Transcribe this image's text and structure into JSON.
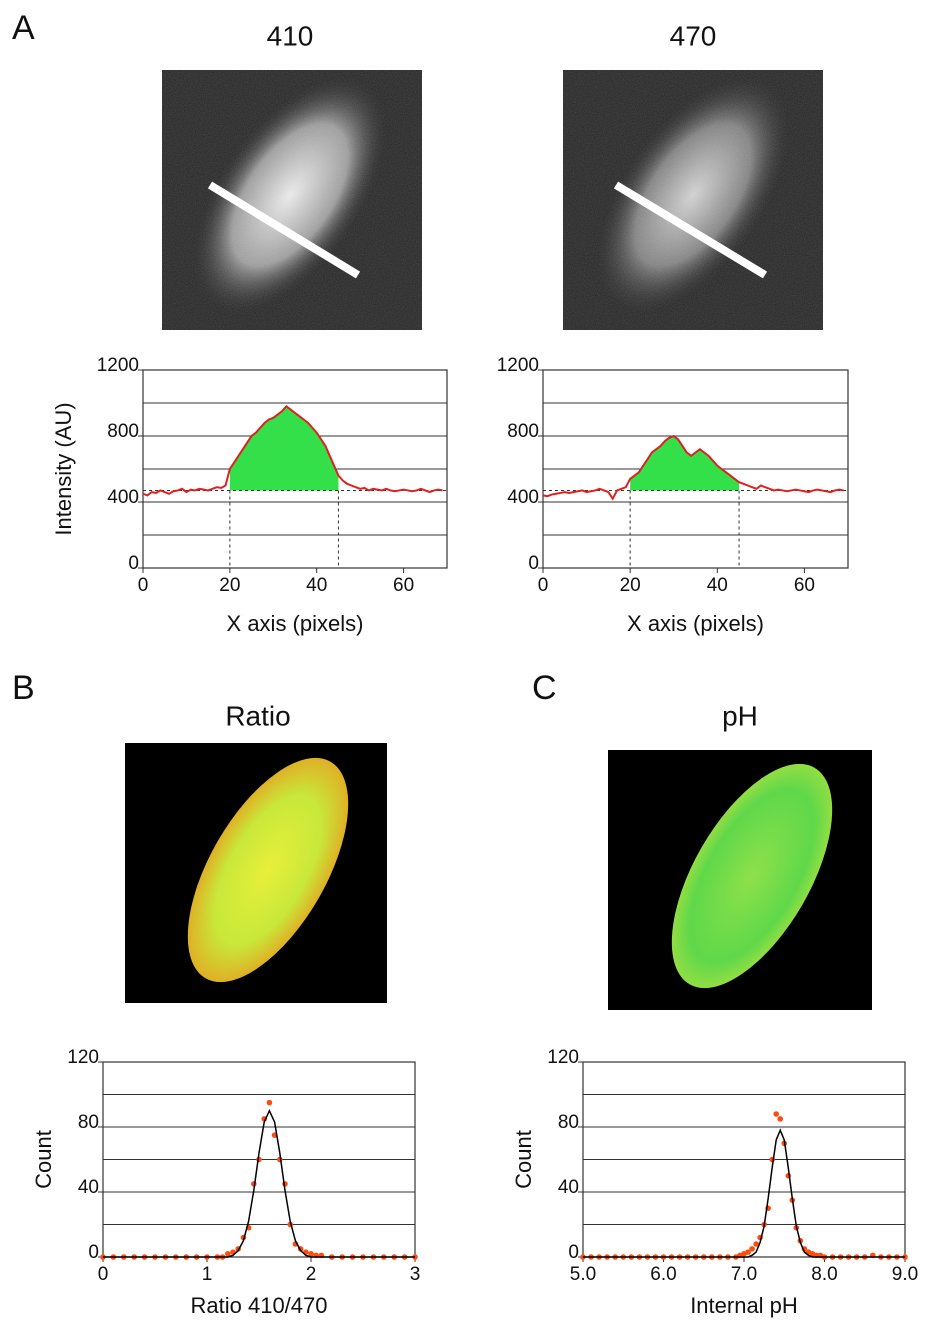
{
  "panel_labels": [
    "A",
    "B",
    "C"
  ],
  "image_titles": [
    "410",
    "470",
    "Ratio",
    "pH"
  ],
  "chart_data": [
    {
      "type": "line",
      "xlabel": "X axis (pixels)",
      "ylabel": "Intensity (AU)",
      "xlim": [
        0,
        70
      ],
      "ylim": [
        0,
        1200
      ],
      "xticks": [
        0,
        20,
        40,
        60
      ],
      "yticks": [
        0,
        400,
        800,
        1200
      ],
      "ygrid": [
        200,
        400,
        600,
        800,
        1000
      ],
      "shade_range": [
        20,
        45
      ],
      "baseline": 470,
      "shade_color": "#33e04a",
      "x": [
        0,
        1,
        2,
        3,
        4,
        5,
        6,
        7,
        8,
        9,
        10,
        11,
        12,
        13,
        14,
        15,
        16,
        17,
        18,
        19,
        20,
        21,
        22,
        23,
        24,
        25,
        26,
        27,
        28,
        29,
        30,
        31,
        32,
        33,
        34,
        35,
        36,
        37,
        38,
        39,
        40,
        41,
        42,
        43,
        44,
        45,
        46,
        47,
        48,
        49,
        50,
        51,
        52,
        53,
        54,
        55,
        56,
        57,
        58,
        59,
        60,
        61,
        62,
        63,
        64,
        65,
        66,
        67,
        68,
        69
      ],
      "series": [
        {
          "color": "#e02020",
          "values": [
            450,
            440,
            460,
            455,
            470,
            460,
            450,
            465,
            470,
            480,
            460,
            475,
            470,
            480,
            475,
            470,
            480,
            490,
            485,
            500,
            600,
            640,
            680,
            720,
            760,
            800,
            820,
            850,
            880,
            900,
            910,
            930,
            950,
            980,
            960,
            940,
            920,
            900,
            880,
            850,
            820,
            780,
            740,
            680,
            620,
            560,
            530,
            510,
            500,
            490,
            480,
            485,
            470,
            480,
            475,
            470,
            480,
            470,
            465,
            470,
            475,
            470,
            465,
            470,
            480,
            470,
            460,
            470,
            475,
            470
          ]
        }
      ]
    },
    {
      "type": "line",
      "xlabel": "X axis (pixels)",
      "xlim": [
        0,
        70
      ],
      "ylim": [
        0,
        1200
      ],
      "xticks": [
        0,
        20,
        40,
        60
      ],
      "yticks": [
        0,
        400,
        800,
        1200
      ],
      "ygrid": [
        200,
        400,
        600,
        800,
        1000
      ],
      "shade_range": [
        20,
        45
      ],
      "baseline": 470,
      "shade_color": "#33e04a",
      "x": [
        0,
        1,
        2,
        3,
        4,
        5,
        6,
        7,
        8,
        9,
        10,
        11,
        12,
        13,
        14,
        15,
        16,
        17,
        18,
        19,
        20,
        21,
        22,
        23,
        24,
        25,
        26,
        27,
        28,
        29,
        30,
        31,
        32,
        33,
        34,
        35,
        36,
        37,
        38,
        39,
        40,
        41,
        42,
        43,
        44,
        45,
        46,
        47,
        48,
        49,
        50,
        51,
        52,
        53,
        54,
        55,
        56,
        57,
        58,
        59,
        60,
        61,
        62,
        63,
        64,
        65,
        66,
        67,
        68,
        69
      ],
      "series": [
        {
          "color": "#e02020",
          "values": [
            440,
            435,
            445,
            450,
            455,
            460,
            455,
            460,
            465,
            470,
            460,
            465,
            470,
            480,
            470,
            460,
            420,
            470,
            480,
            490,
            540,
            560,
            580,
            620,
            660,
            700,
            720,
            740,
            770,
            790,
            800,
            780,
            740,
            700,
            680,
            700,
            720,
            700,
            680,
            650,
            620,
            600,
            580,
            560,
            540,
            520,
            510,
            500,
            490,
            480,
            500,
            490,
            480,
            470,
            475,
            470,
            465,
            470,
            475,
            470,
            465,
            460,
            470,
            475,
            470,
            465,
            460,
            470,
            475,
            470
          ]
        }
      ]
    },
    {
      "type": "scatter",
      "xlabel": "Ratio 410/470",
      "ylabel": "Count",
      "xlim": [
        0,
        3
      ],
      "ylim": [
        0,
        120
      ],
      "xticks": [
        0,
        1,
        2,
        3
      ],
      "yticks": [
        0,
        40,
        80,
        120
      ],
      "ygrid": [
        20,
        40,
        60,
        80,
        100
      ],
      "x": [
        0,
        0.1,
        0.2,
        0.3,
        0.4,
        0.5,
        0.6,
        0.7,
        0.8,
        0.9,
        1.0,
        1.1,
        1.15,
        1.2,
        1.25,
        1.3,
        1.35,
        1.4,
        1.45,
        1.5,
        1.55,
        1.6,
        1.65,
        1.7,
        1.75,
        1.8,
        1.85,
        1.9,
        1.95,
        2.0,
        2.05,
        2.1,
        2.2,
        2.3,
        2.4,
        2.5,
        2.6,
        2.7,
        2.8,
        2.9,
        3.0
      ],
      "series": [
        {
          "color": "#ff4a10",
          "marker": "dot",
          "values": [
            0,
            0,
            0,
            0,
            0,
            0,
            0,
            0,
            0,
            0,
            0,
            0,
            0,
            2,
            3,
            5,
            12,
            18,
            45,
            60,
            85,
            95,
            75,
            60,
            45,
            20,
            8,
            5,
            3,
            2,
            1,
            1,
            0,
            0,
            0,
            0,
            0,
            0,
            0,
            0,
            0
          ]
        },
        {
          "color": "#000000",
          "marker": "line",
          "values": [
            0,
            0,
            0,
            0,
            0,
            0,
            0,
            0,
            0,
            0,
            0,
            0,
            0,
            0,
            1,
            4,
            10,
            22,
            41,
            64,
            83,
            90,
            83,
            64,
            41,
            22,
            10,
            4,
            1,
            0,
            0,
            0,
            0,
            0,
            0,
            0,
            0,
            0,
            0,
            0,
            0
          ]
        }
      ]
    },
    {
      "type": "scatter",
      "xlabel": "Internal pH",
      "ylabel": "Count",
      "xlim": [
        5,
        9
      ],
      "ylim": [
        0,
        120
      ],
      "xticks": [
        {
          "value": 5,
          "label": "5.0"
        },
        {
          "value": 6,
          "label": "6.0"
        },
        {
          "value": 7,
          "label": "7.0"
        },
        {
          "value": 8,
          "label": "8.0"
        },
        {
          "value": 9,
          "label": "9.0"
        }
      ],
      "yticks": [
        0,
        40,
        80,
        120
      ],
      "ygrid": [
        20,
        40,
        60,
        80,
        100
      ],
      "x": [
        5.0,
        5.1,
        5.2,
        5.3,
        5.4,
        5.5,
        5.6,
        5.7,
        5.8,
        5.9,
        6.0,
        6.1,
        6.2,
        6.3,
        6.4,
        6.5,
        6.6,
        6.7,
        6.8,
        6.9,
        6.95,
        7.0,
        7.05,
        7.1,
        7.15,
        7.2,
        7.25,
        7.3,
        7.35,
        7.4,
        7.45,
        7.5,
        7.55,
        7.6,
        7.65,
        7.7,
        7.75,
        7.8,
        7.85,
        7.9,
        7.95,
        8.0,
        8.1,
        8.2,
        8.3,
        8.4,
        8.5,
        8.6,
        8.7,
        8.8,
        8.9,
        9.0
      ],
      "series": [
        {
          "color": "#ff4a10",
          "marker": "dot",
          "values": [
            0,
            0,
            0,
            0,
            0,
            0,
            0,
            0,
            0,
            0,
            0,
            0,
            0,
            0,
            0,
            0,
            0,
            0,
            0,
            0,
            1,
            2,
            3,
            5,
            8,
            12,
            20,
            30,
            60,
            88,
            85,
            70,
            50,
            35,
            18,
            10,
            5,
            3,
            2,
            1,
            1,
            0,
            0,
            0,
            0,
            0,
            0,
            1,
            0,
            0,
            0,
            0
          ]
        },
        {
          "color": "#000000",
          "marker": "line",
          "values": [
            0,
            0,
            0,
            0,
            0,
            0,
            0,
            0,
            0,
            0,
            0,
            0,
            0,
            0,
            0,
            0,
            0,
            0,
            0,
            0,
            0,
            0,
            0,
            1,
            3,
            9,
            19,
            36,
            55,
            72,
            78,
            72,
            55,
            36,
            19,
            9,
            3,
            1,
            0,
            0,
            0,
            0,
            0,
            0,
            0,
            0,
            0,
            0,
            0,
            0,
            0,
            0
          ]
        }
      ]
    }
  ]
}
